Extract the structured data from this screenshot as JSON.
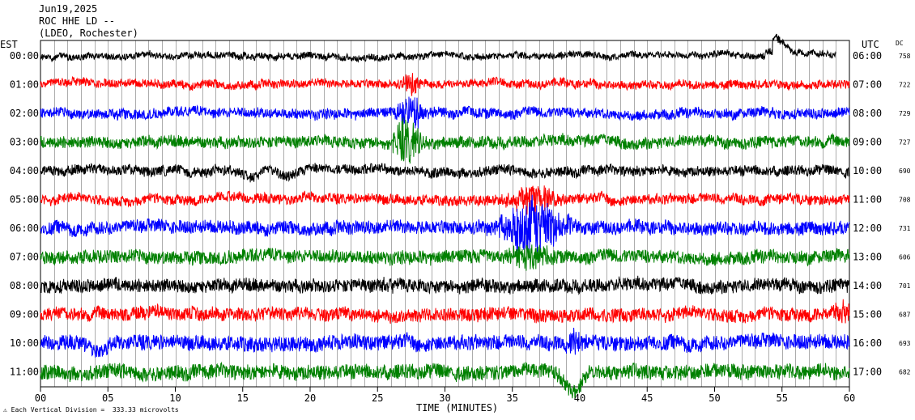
{
  "header": {
    "date": "Jun19,2025",
    "station": "ROC HHE LD --",
    "network": "(LDEO, Rochester)"
  },
  "left_axis_title": "EST",
  "right_axis_title": "UTC",
  "dc_title": "DC",
  "footer": {
    "scale_note": "Each Vertical Division =  333.33 microvolts",
    "xlabel": "TIME (MINUTES)"
  },
  "colors": {
    "black": "#000000",
    "red": "#ff0000",
    "blue": "#0000ff",
    "green": "#008000"
  },
  "chart_data": {
    "type": "line",
    "title": "ROC HHE LD --",
    "xlabel": "TIME (MINUTES)",
    "xlim": [
      0,
      60
    ],
    "x_ticks": [
      "00",
      "05",
      "10",
      "15",
      "20",
      "25",
      "30",
      "35",
      "40",
      "45",
      "50",
      "55",
      "60"
    ],
    "rows": [
      {
        "est": "00:00",
        "utc": "06:00",
        "dc": "758",
        "color": "black",
        "amp": 4,
        "events": [
          {
            "t": 54.3,
            "a": 22,
            "w": 1.8,
            "type": "step"
          }
        ],
        "end": 59.0
      },
      {
        "est": "01:00",
        "utc": "07:00",
        "dc": "722",
        "color": "red",
        "amp": 5,
        "events": [
          {
            "t": 27.5,
            "a": 14,
            "w": 0.7,
            "type": "burst"
          }
        ]
      },
      {
        "est": "02:00",
        "utc": "08:00",
        "dc": "729",
        "color": "blue",
        "amp": 6,
        "events": [
          {
            "t": 27.5,
            "a": 22,
            "w": 0.9,
            "type": "burst"
          }
        ]
      },
      {
        "est": "03:00",
        "utc": "09:00",
        "dc": "727",
        "color": "green",
        "amp": 7,
        "events": [
          {
            "t": 27.2,
            "a": 26,
            "w": 1.0,
            "type": "burst"
          }
        ]
      },
      {
        "est": "04:00",
        "utc": "10:00",
        "dc": "690",
        "color": "black",
        "amp": 6,
        "events": [
          {
            "t": 15.8,
            "a": 8,
            "w": 0.6,
            "type": "dip"
          },
          {
            "t": 18.2,
            "a": 10,
            "w": 0.8,
            "type": "dip"
          }
        ]
      },
      {
        "est": "05:00",
        "utc": "11:00",
        "dc": "708",
        "color": "red",
        "amp": 6,
        "events": [
          {
            "t": 36.5,
            "a": 16,
            "w": 1.8,
            "type": "burst"
          }
        ]
      },
      {
        "est": "06:00",
        "utc": "12:00",
        "dc": "731",
        "color": "blue",
        "amp": 8,
        "events": [
          {
            "t": 36.5,
            "a": 36,
            "w": 2.2,
            "type": "burst"
          }
        ]
      },
      {
        "est": "07:00",
        "utc": "13:00",
        "dc": "606",
        "color": "green",
        "amp": 8,
        "events": [
          {
            "t": 36.5,
            "a": 12,
            "w": 1.5,
            "type": "burst"
          }
        ]
      },
      {
        "est": "08:00",
        "utc": "14:00",
        "dc": "701",
        "color": "black",
        "amp": 8,
        "events": [
          {
            "t": 26.0,
            "a": 12,
            "w": 0.5,
            "type": "burst"
          }
        ]
      },
      {
        "est": "09:00",
        "utc": "15:00",
        "dc": "687",
        "color": "red",
        "amp": 8,
        "events": [
          {
            "t": 59.5,
            "a": 12,
            "w": 0.5,
            "type": "burst"
          }
        ]
      },
      {
        "est": "10:00",
        "utc": "16:00",
        "dc": "693",
        "color": "blue",
        "amp": 9,
        "events": [
          {
            "t": 39.6,
            "a": 12,
            "w": 0.6,
            "type": "burst"
          },
          {
            "t": 4.5,
            "a": 10,
            "w": 1.0,
            "type": "dip"
          }
        ]
      },
      {
        "est": "11:00",
        "utc": "17:00",
        "dc": "682",
        "color": "green",
        "amp": 9,
        "events": [
          {
            "t": 39.5,
            "a": 22,
            "w": 0.8,
            "type": "dip"
          }
        ]
      }
    ]
  }
}
